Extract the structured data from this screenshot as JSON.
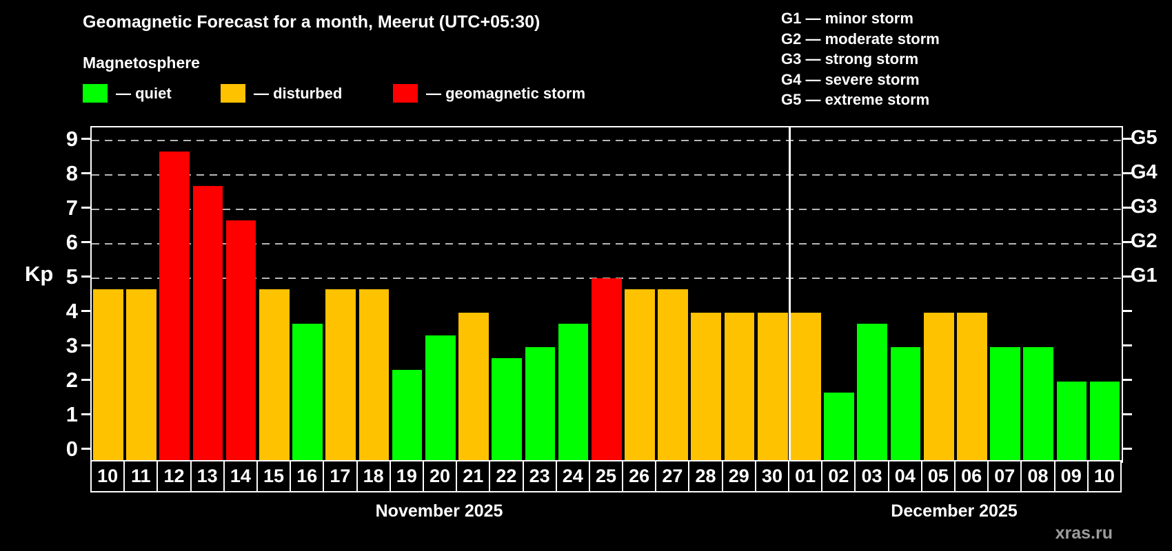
{
  "title": "Geomagnetic Forecast for a month, Meerut (UTC+05:30)",
  "subtitle": "Magnetosphere",
  "legend": {
    "items": [
      {
        "key": "quiet",
        "label": "— quiet",
        "color": "#00ff00"
      },
      {
        "key": "disturbed",
        "label": "— disturbed",
        "color": "#ffc200"
      },
      {
        "key": "storm",
        "label": "— geomagnetic storm",
        "color": "#ff0000"
      }
    ]
  },
  "storm_scale_legend": [
    "G1 — minor storm",
    "G2 — moderate storm",
    "G3 — strong storm",
    "G4 — severe storm",
    "G5 — extreme storm"
  ],
  "watermark": "xras.ru",
  "chart_data": {
    "type": "bar",
    "title": "Geomagnetic Forecast for a month, Meerut (UTC+05:30)",
    "ylabel": "Kp",
    "ylim": [
      0,
      9.3
    ],
    "yticks": [
      0,
      1,
      2,
      3,
      4,
      5,
      6,
      7,
      8,
      9
    ],
    "grid_at": [
      5,
      6,
      7,
      8,
      9
    ],
    "grid_style": "dashed",
    "right_scale": [
      {
        "kp": 5,
        "label": "G1"
      },
      {
        "kp": 6,
        "label": "G2"
      },
      {
        "kp": 7,
        "label": "G3"
      },
      {
        "kp": 8,
        "label": "G4"
      },
      {
        "kp": 9,
        "label": "G5"
      }
    ],
    "colors": {
      "quiet": "#00ff00",
      "disturbed": "#ffc200",
      "storm": "#ff0000"
    },
    "months": [
      {
        "label": "November 2025",
        "day_count": 21
      },
      {
        "label": "December 2025",
        "day_count": 10
      }
    ],
    "bars": [
      {
        "day": "10",
        "month": "November 2025",
        "value": 4.67,
        "status": "disturbed"
      },
      {
        "day": "11",
        "month": "November 2025",
        "value": 4.67,
        "status": "disturbed"
      },
      {
        "day": "12",
        "month": "November 2025",
        "value": 8.67,
        "status": "storm"
      },
      {
        "day": "13",
        "month": "November 2025",
        "value": 7.67,
        "status": "storm"
      },
      {
        "day": "14",
        "month": "November 2025",
        "value": 6.67,
        "status": "storm"
      },
      {
        "day": "15",
        "month": "November 2025",
        "value": 4.67,
        "status": "disturbed"
      },
      {
        "day": "16",
        "month": "November 2025",
        "value": 3.67,
        "status": "quiet"
      },
      {
        "day": "17",
        "month": "November 2025",
        "value": 4.67,
        "status": "disturbed"
      },
      {
        "day": "18",
        "month": "November 2025",
        "value": 4.67,
        "status": "disturbed"
      },
      {
        "day": "19",
        "month": "November 2025",
        "value": 2.33,
        "status": "quiet"
      },
      {
        "day": "20",
        "month": "November 2025",
        "value": 3.33,
        "status": "quiet"
      },
      {
        "day": "21",
        "month": "November 2025",
        "value": 4.0,
        "status": "disturbed"
      },
      {
        "day": "22",
        "month": "November 2025",
        "value": 2.67,
        "status": "quiet"
      },
      {
        "day": "23",
        "month": "November 2025",
        "value": 3.0,
        "status": "quiet"
      },
      {
        "day": "24",
        "month": "November 2025",
        "value": 3.67,
        "status": "quiet"
      },
      {
        "day": "25",
        "month": "November 2025",
        "value": 5.0,
        "status": "storm"
      },
      {
        "day": "26",
        "month": "November 2025",
        "value": 4.67,
        "status": "disturbed"
      },
      {
        "day": "27",
        "month": "November 2025",
        "value": 4.67,
        "status": "disturbed"
      },
      {
        "day": "28",
        "month": "November 2025",
        "value": 4.0,
        "status": "disturbed"
      },
      {
        "day": "29",
        "month": "November 2025",
        "value": 4.0,
        "status": "disturbed"
      },
      {
        "day": "30",
        "month": "November 2025",
        "value": 4.0,
        "status": "disturbed"
      },
      {
        "day": "01",
        "month": "December 2025",
        "value": 4.0,
        "status": "disturbed"
      },
      {
        "day": "02",
        "month": "December 2025",
        "value": 1.67,
        "status": "quiet"
      },
      {
        "day": "03",
        "month": "December 2025",
        "value": 3.67,
        "status": "quiet"
      },
      {
        "day": "04",
        "month": "December 2025",
        "value": 3.0,
        "status": "quiet"
      },
      {
        "day": "05",
        "month": "December 2025",
        "value": 4.0,
        "status": "disturbed"
      },
      {
        "day": "06",
        "month": "December 2025",
        "value": 4.0,
        "status": "disturbed"
      },
      {
        "day": "07",
        "month": "December 2025",
        "value": 3.0,
        "status": "quiet"
      },
      {
        "day": "08",
        "month": "December 2025",
        "value": 3.0,
        "status": "quiet"
      },
      {
        "day": "09",
        "month": "December 2025",
        "value": 2.0,
        "status": "quiet"
      },
      {
        "day": "10",
        "month": "December 2025",
        "value": 2.0,
        "status": "quiet"
      }
    ]
  }
}
